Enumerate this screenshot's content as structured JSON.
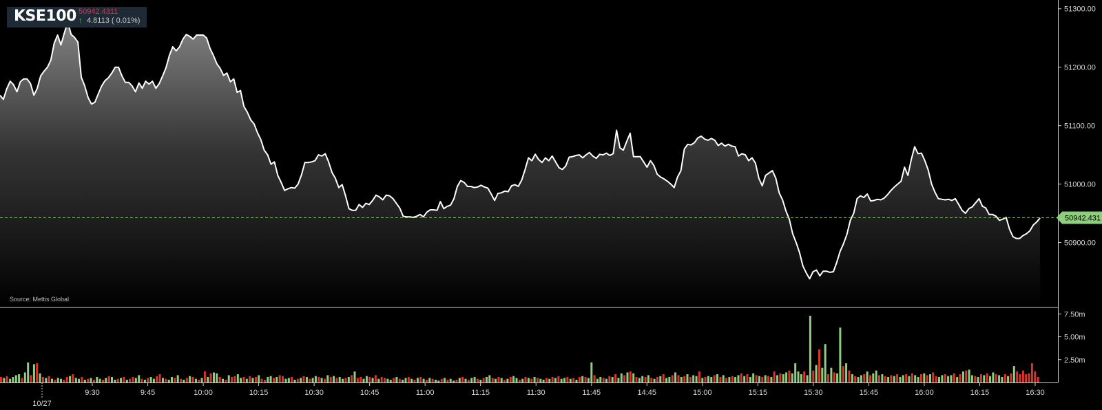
{
  "ticker": {
    "symbol": "KSE100",
    "price": "50942.4311",
    "change": "4.8113 ( 0.01%)",
    "change_direction": "up",
    "up_color": "#4fd24f",
    "price_color": "#e0334a"
  },
  "source_label": "Source: Mettis Global",
  "current_price_label": "50942.431",
  "chart_data": [
    {
      "type": "area",
      "y_ticks": [
        "51300.00",
        "51200.00",
        "51100.00",
        "51000.00",
        "50900.00"
      ],
      "y_tick_values": [
        51300,
        51200,
        51100,
        51000,
        50900
      ],
      "ylim": [
        50790,
        51315
      ],
      "current_value": 50942.43,
      "x_ticks": [
        "9:30",
        "9:45",
        "10:00",
        "10:15",
        "10:30",
        "10:45",
        "11:00",
        "11:15",
        "11:30",
        "11:45",
        "14:45",
        "15:00",
        "15:15",
        "15:30",
        "15:45",
        "16:00",
        "16:15",
        "16:30"
      ],
      "date_label": "10/27",
      "grid": false,
      "values": [
        51152,
        51145,
        51163,
        51176,
        51170,
        51158,
        51175,
        51180,
        51180,
        51172,
        51152,
        51164,
        51185,
        51193,
        51200,
        51212,
        51241,
        51255,
        51238,
        51259,
        51277,
        51256,
        51251,
        51243,
        51183,
        51168,
        51148,
        51137,
        51140,
        51154,
        51168,
        51177,
        51182,
        51190,
        51200,
        51200,
        51185,
        51174,
        51174,
        51168,
        51158,
        51173,
        51164,
        51176,
        51171,
        51176,
        51164,
        51172,
        51185,
        51199,
        51220,
        51235,
        51228,
        51235,
        51248,
        51256,
        51253,
        51248,
        51255,
        51255,
        51255,
        51250,
        51232,
        51220,
        51206,
        51198,
        51186,
        51190,
        51175,
        51180,
        51157,
        51160,
        51133,
        51123,
        51110,
        51103,
        51088,
        51076,
        51058,
        51050,
        51034,
        51038,
        51015,
        51003,
        50989,
        50992,
        50994,
        50993,
        51000,
        51016,
        51037,
        51037,
        51038,
        51040,
        51050,
        51048,
        51052,
        51038,
        51020,
        51010,
        50994,
        50999,
        50980,
        50958,
        50955,
        50955,
        50965,
        50960,
        50967,
        50965,
        50972,
        50981,
        50978,
        50973,
        50981,
        50980,
        50975,
        50967,
        50959,
        50945,
        50944,
        50944,
        50943,
        50945,
        50948,
        50944,
        50952,
        50956,
        50956,
        50955,
        50970,
        50958,
        50962,
        50964,
        50975,
        50996,
        51006,
        51003,
        50996,
        50996,
        50994,
        50995,
        50998,
        50995,
        50993,
        50983,
        50972,
        50984,
        50985,
        50988,
        50987,
        50997,
        50999,
        50996,
        51007,
        51025,
        51045,
        51040,
        51051,
        51042,
        51037,
        51045,
        51040,
        51048,
        51038,
        51028,
        51025,
        51031,
        51046,
        51047,
        51049,
        51050,
        51045,
        51050,
        51054,
        51048,
        51044,
        51051,
        51050,
        51053,
        51049,
        51052,
        51092,
        51062,
        51058,
        51073,
        51087,
        51047,
        51047,
        51047,
        51038,
        51029,
        51040,
        51032,
        51017,
        51012,
        51009,
        51005,
        51000,
        50994,
        51012,
        51023,
        51060,
        51068,
        51067,
        51071,
        51079,
        51082,
        51077,
        51075,
        51078,
        51075,
        51066,
        51070,
        51065,
        51068,
        51065,
        51064,
        51048,
        51052,
        51050,
        51040,
        51045,
        51036,
        51010,
        50997,
        51015,
        51019,
        51023,
        51010,
        50985,
        50973,
        50954,
        50940,
        50915,
        50900,
        50883,
        50860,
        50848,
        50838,
        50850,
        50853,
        50843,
        50851,
        50851,
        50849,
        50850,
        50866,
        50885,
        50898,
        50914,
        50938,
        50950,
        50975,
        50980,
        50977,
        50983,
        50971,
        50972,
        50974,
        50973,
        50976,
        50982,
        50989,
        50995,
        51000,
        51005,
        51029,
        51015,
        51042,
        51064,
        51052,
        51053,
        51040,
        51024,
        51000,
        50986,
        50975,
        50974,
        50973,
        50974,
        50972,
        50975,
        50965,
        50955,
        50950,
        50958,
        50961,
        50968,
        50975,
        50962,
        50959,
        50948,
        50948,
        50945,
        50938,
        50940,
        50943,
        50923,
        50910,
        50907,
        50907,
        50912,
        50915,
        50920,
        50930,
        50935,
        50942
      ]
    },
    {
      "type": "bar",
      "y_ticks": [
        "7.50m",
        "5.00m",
        "2.50m"
      ],
      "y_tick_values": [
        7.5,
        5.0,
        2.5
      ],
      "ylim": [
        0,
        8.2
      ],
      "units": "m",
      "up_color": "#8fce7e",
      "down_color": "#d9362a",
      "values": [
        0.6,
        0.5,
        0.7,
        0.4,
        0.6,
        0.8,
        0.9,
        0.5,
        1.1,
        2.2,
        0.8,
        2.0,
        2.1,
        1.0,
        0.6,
        0.5,
        0.7,
        0.4,
        0.3,
        0.5,
        0.4,
        0.3,
        0.6,
        0.7,
        0.9,
        0.5,
        0.4,
        0.6,
        0.3,
        0.4,
        0.5,
        0.3,
        0.6,
        0.4,
        0.3,
        0.5,
        0.7,
        0.6,
        0.3,
        0.4,
        0.5,
        0.6,
        0.3,
        0.4,
        0.6,
        0.5,
        0.8,
        0.4,
        0.3,
        0.5,
        0.6,
        0.4,
        0.7,
        0.9,
        0.5,
        0.4,
        0.3,
        0.6,
        0.5,
        0.8,
        0.4,
        0.3,
        0.5,
        0.7,
        0.6,
        0.4,
        0.3,
        0.5,
        1.2,
        0.6,
        1.0,
        1.1,
        1.0,
        0.6,
        0.4,
        0.3,
        0.8,
        0.6,
        0.7,
        0.9,
        0.5,
        0.6,
        0.4,
        0.7,
        0.5,
        0.6,
        0.8,
        0.4,
        0.3,
        0.6,
        0.7,
        0.5,
        0.6,
        0.8,
        0.7,
        0.4,
        0.5,
        0.6,
        0.3,
        0.4,
        0.5,
        0.7,
        0.6,
        0.4,
        0.5,
        0.7,
        0.6,
        0.5,
        0.4,
        0.8,
        0.6,
        0.7,
        0.5,
        0.6,
        0.4,
        0.5,
        0.6,
        0.8,
        1.2,
        0.5,
        0.6,
        0.4,
        0.7,
        0.6,
        0.5,
        0.8,
        0.4,
        0.6,
        0.5,
        0.4,
        0.3,
        0.5,
        0.6,
        0.4,
        0.3,
        0.5,
        0.6,
        0.4,
        0.3,
        0.5,
        0.6,
        0.4,
        0.3,
        0.5,
        0.4,
        0.3,
        0.2,
        0.4,
        0.5,
        0.3,
        0.4,
        0.2,
        0.3,
        0.5,
        0.6,
        0.4,
        0.3,
        0.5,
        0.6,
        0.4,
        0.3,
        0.5,
        0.6,
        0.8,
        0.5,
        0.4,
        0.6,
        0.5,
        0.3,
        0.4,
        0.6,
        0.7,
        0.5,
        0.3,
        0.4,
        0.6,
        0.5,
        0.4,
        0.6,
        0.5,
        0.4,
        0.3,
        0.5,
        0.4,
        0.6,
        0.5,
        0.7,
        0.4,
        0.5,
        0.6,
        0.4,
        0.5,
        0.3,
        0.6,
        0.7,
        0.6,
        0.5,
        2.2,
        0.8,
        0.4,
        0.6,
        0.5,
        0.4,
        0.7,
        0.6,
        0.9,
        0.5,
        1.0,
        0.8,
        1.1,
        1.2,
        1.0,
        0.6,
        0.5,
        0.7,
        0.6,
        0.8,
        0.5,
        0.4,
        0.6,
        0.7,
        0.9,
        0.5,
        0.6,
        0.8,
        1.1,
        0.8,
        0.6,
        0.7,
        0.9,
        0.6,
        0.8,
        0.7,
        1.2,
        0.5,
        0.6,
        0.7,
        0.6,
        0.8,
        0.9,
        0.6,
        0.8,
        0.5,
        0.6,
        0.7,
        0.6,
        0.8,
        1.0,
        0.7,
        0.9,
        0.6,
        1.0,
        0.8,
        0.7,
        0.6,
        0.8,
        0.7,
        0.6,
        1.2,
        0.8,
        1.0,
        0.9,
        1.1,
        1.3,
        1.0,
        2.1,
        1.2,
        0.9,
        1.2,
        0.8,
        7.3,
        1.3,
        1.9,
        3.6,
        1.6,
        4.2,
        0.9,
        1.6,
        1.1,
        1.0,
        6.0,
        1.8,
        2.1,
        1.3,
        0.9,
        0.7,
        0.6,
        0.8,
        0.9,
        1.2,
        0.8,
        1.0,
        1.3,
        0.8,
        0.9,
        0.7,
        0.6,
        0.8,
        0.7,
        0.9,
        0.6,
        0.8,
        0.9,
        0.7,
        1.0,
        0.8,
        0.6,
        0.9,
        1.0,
        0.8,
        0.9,
        1.1,
        0.7,
        0.6,
        0.8,
        0.9,
        0.7,
        0.8,
        1.0,
        0.6,
        0.9,
        1.2,
        1.3,
        1.4,
        0.8,
        0.7,
        0.6,
        0.9,
        0.8,
        1.0,
        0.7,
        1.1,
        0.9,
        0.8,
        0.6,
        0.9,
        0.7,
        1.0,
        1.8,
        1.2,
        0.9,
        1.3,
        0.9,
        1.0,
        2.1,
        1.2,
        0.6
      ],
      "colors": [
        "r",
        "g",
        "r",
        "g",
        "g",
        "g",
        "g",
        "r",
        "g",
        "g",
        "r",
        "g",
        "r",
        "g",
        "r",
        "g",
        "r",
        "g",
        "r",
        "g",
        "g",
        "r",
        "r",
        "g",
        "r",
        "g",
        "g",
        "r",
        "g",
        "r",
        "g",
        "r",
        "g",
        "g",
        "r",
        "g",
        "r",
        "g",
        "g",
        "r",
        "g",
        "r",
        "g",
        "r",
        "r",
        "g",
        "g",
        "r",
        "g",
        "r",
        "g",
        "g",
        "r",
        "r",
        "g",
        "r",
        "g",
        "g",
        "r",
        "g",
        "r",
        "g",
        "r",
        "g",
        "r",
        "g",
        "r",
        "g",
        "r",
        "g",
        "r",
        "g",
        "g",
        "r",
        "g",
        "r",
        "g",
        "r",
        "r",
        "g",
        "g",
        "r",
        "g",
        "r",
        "g",
        "r",
        "g",
        "r",
        "r",
        "g",
        "g",
        "r",
        "g",
        "r",
        "r",
        "g",
        "g",
        "r",
        "g",
        "r",
        "g",
        "r",
        "g",
        "r",
        "g",
        "g",
        "r",
        "g",
        "r",
        "g",
        "r",
        "g",
        "r",
        "g",
        "g",
        "r",
        "g",
        "r",
        "g",
        "r",
        "r",
        "g",
        "g",
        "r",
        "g",
        "r",
        "g",
        "r",
        "r",
        "g",
        "g",
        "r",
        "g",
        "r",
        "g",
        "g",
        "r",
        "g",
        "r",
        "g",
        "r",
        "g",
        "r",
        "g",
        "r",
        "g",
        "g",
        "r",
        "g",
        "r",
        "g",
        "g",
        "r",
        "g",
        "r",
        "g",
        "r",
        "g",
        "g",
        "r",
        "g",
        "r",
        "g",
        "g",
        "r",
        "g",
        "r",
        "g",
        "r",
        "g",
        "r",
        "g",
        "g",
        "r",
        "g",
        "r",
        "g",
        "r",
        "g",
        "r",
        "g",
        "g",
        "r",
        "g",
        "r",
        "g",
        "r",
        "g",
        "g",
        "r",
        "g",
        "r",
        "g",
        "r",
        "g",
        "r",
        "g",
        "g",
        "r",
        "g",
        "g",
        "r",
        "g",
        "r",
        "g",
        "r",
        "g",
        "g",
        "r",
        "g",
        "r",
        "g",
        "r",
        "g",
        "g",
        "r",
        "g",
        "r",
        "g",
        "r",
        "g",
        "r",
        "g",
        "g",
        "r",
        "g",
        "r",
        "g",
        "r",
        "g",
        "r",
        "g",
        "g",
        "r",
        "g",
        "r",
        "g",
        "g",
        "r",
        "g",
        "r",
        "g",
        "r",
        "g",
        "r",
        "g",
        "g",
        "r",
        "g",
        "r",
        "g",
        "g",
        "r",
        "g",
        "r",
        "g",
        "r",
        "g",
        "r",
        "g",
        "r",
        "g",
        "g",
        "r",
        "g",
        "g",
        "g",
        "g",
        "r",
        "g",
        "g",
        "r",
        "g",
        "r",
        "g",
        "g",
        "r",
        "g",
        "r",
        "g",
        "g",
        "r",
        "g",
        "r",
        "g",
        "r",
        "g",
        "g",
        "r",
        "g",
        "r",
        "g",
        "g",
        "r",
        "g",
        "r",
        "g",
        "r",
        "g",
        "r",
        "g",
        "g",
        "r",
        "g",
        "r",
        "g",
        "g",
        "r",
        "g",
        "r",
        "g",
        "r",
        "r",
        "g",
        "g",
        "r",
        "g",
        "g",
        "r",
        "g",
        "r",
        "g",
        "r",
        "g",
        "g",
        "r",
        "g",
        "r",
        "g",
        "r",
        "g",
        "g",
        "r",
        "g",
        "g",
        "r",
        "g",
        "r",
        "g"
      ]
    }
  ]
}
